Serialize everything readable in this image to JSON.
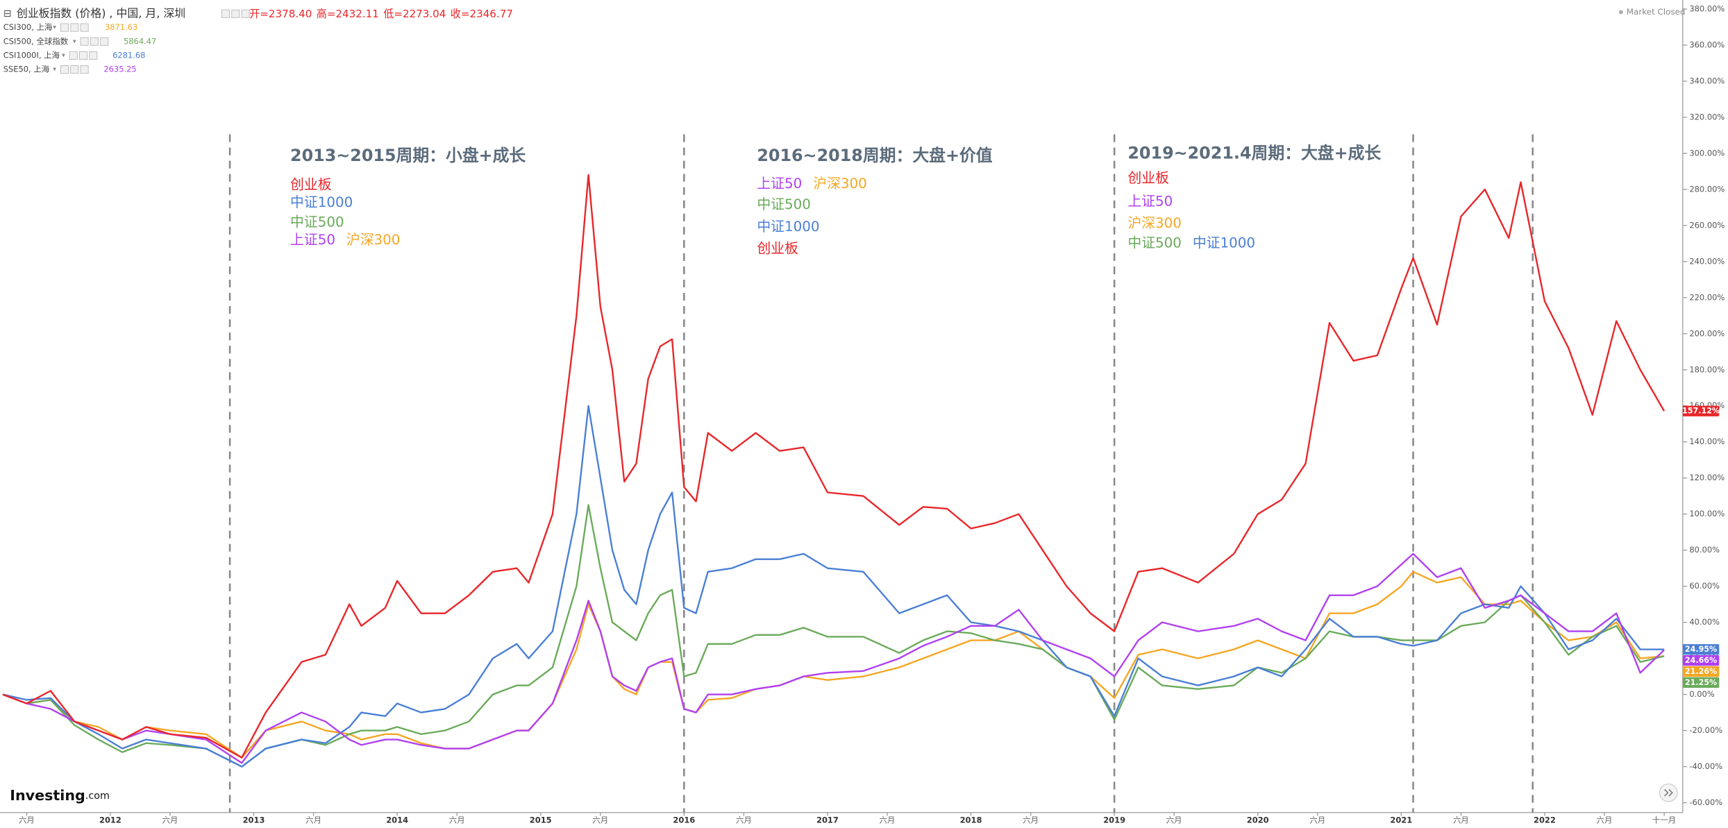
{
  "chart_data": {
    "type": "line",
    "ui": {
      "status": "Market Closed",
      "logo": "Investing",
      "logo_suffix": ".com"
    },
    "ohlc": [
      "开=2378.40",
      "高=2432.11",
      "低=2273.04",
      "收=2346.77"
    ],
    "x": [
      "2011-04",
      "2011-06",
      "2011-08",
      "2011-10",
      "2011-12",
      "2012-02",
      "2012-04",
      "2012-06",
      "2012-09",
      "2012-12",
      "2013-02",
      "2013-05",
      "2013-07",
      "2013-09",
      "2013-10",
      "2013-12",
      "2014-01",
      "2014-03",
      "2014-05",
      "2014-07",
      "2014-09",
      "2014-11",
      "2014-12",
      "2015-02",
      "2015-04",
      "2015-05",
      "2015-06",
      "2015-07",
      "2015-08",
      "2015-09",
      "2015-10",
      "2015-11",
      "2015-12",
      "2016-01",
      "2016-02",
      "2016-03",
      "2016-05",
      "2016-07",
      "2016-09",
      "2016-11",
      "2017-01",
      "2017-04",
      "2017-07",
      "2017-09",
      "2017-11",
      "2018-01",
      "2018-03",
      "2018-05",
      "2018-07",
      "2018-09",
      "2018-11",
      "2019-01",
      "2019-03",
      "2019-05",
      "2019-08",
      "2019-11",
      "2020-01",
      "2020-03",
      "2020-05",
      "2020-07",
      "2020-09",
      "2020-11",
      "2021-01",
      "2021-02",
      "2021-04",
      "2021-06",
      "2021-08",
      "2021-10",
      "2021-11",
      "2022-01",
      "2022-03",
      "2022-05",
      "2022-07",
      "2022-09",
      "2022-11"
    ],
    "series": [
      {
        "name": "CSI300, 上海",
        "legend_value": 3871.63,
        "end_label": "21.26%",
        "color": "#f5a623",
        "values": [
          0,
          -5,
          -3,
          -15,
          -18,
          -25,
          -18,
          -20,
          -22,
          -35,
          -20,
          -15,
          -20,
          -22,
          -25,
          -22,
          -22,
          -27,
          -30,
          -30,
          -25,
          -20,
          -20,
          -5,
          25,
          50,
          35,
          10,
          3,
          0,
          15,
          18,
          18,
          -8,
          -10,
          -3,
          -2,
          3,
          5,
          10,
          8,
          10,
          15,
          20,
          25,
          30,
          30,
          35,
          25,
          15,
          10,
          -2,
          22,
          25,
          20,
          25,
          30,
          25,
          20,
          45,
          45,
          50,
          60,
          68,
          62,
          65,
          50,
          50,
          52,
          40,
          30,
          32,
          40,
          20,
          21.26
        ]
      },
      {
        "name": "CSI500, 全球指数",
        "legend_value": 5864.47,
        "end_label": "21.25%",
        "color": "#6aaa5a",
        "values": [
          0,
          -5,
          -3,
          -17,
          -25,
          -32,
          -27,
          -28,
          -30,
          -40,
          -30,
          -25,
          -28,
          -22,
          -20,
          -20,
          -18,
          -22,
          -20,
          -15,
          0,
          5,
          5,
          15,
          60,
          105,
          70,
          40,
          35,
          30,
          45,
          55,
          58,
          10,
          12,
          28,
          28,
          33,
          33,
          37,
          32,
          32,
          23,
          30,
          35,
          34,
          30,
          28,
          25,
          15,
          10,
          -14,
          15,
          5,
          3,
          5,
          15,
          12,
          20,
          35,
          32,
          32,
          30,
          30,
          30,
          38,
          40,
          52,
          55,
          40,
          22,
          32,
          38,
          18,
          21.25
        ]
      },
      {
        "name": "CSI1000I, 上海",
        "legend_value": 6281.68,
        "end_label": "24.95%",
        "color": "#4a7fd4",
        "values": [
          0,
          -3,
          -2,
          -15,
          -22,
          -30,
          -25,
          -27,
          -30,
          -40,
          -30,
          -25,
          -27,
          -18,
          -10,
          -12,
          -5,
          -10,
          -8,
          0,
          20,
          28,
          20,
          35,
          100,
          160,
          120,
          80,
          58,
          50,
          80,
          100,
          112,
          48,
          45,
          68,
          70,
          75,
          75,
          78,
          70,
          68,
          45,
          50,
          55,
          40,
          38,
          35,
          30,
          15,
          10,
          -12,
          20,
          10,
          5,
          10,
          15,
          10,
          25,
          42,
          32,
          32,
          28,
          27,
          30,
          45,
          50,
          48,
          60,
          45,
          25,
          30,
          42,
          25,
          24.95
        ]
      },
      {
        "name": "SSE50, 上海",
        "legend_value": 2635.25,
        "end_label": "24.66%",
        "color": "#b040f0",
        "values": [
          0,
          -5,
          -8,
          -15,
          -20,
          -25,
          -20,
          -22,
          -25,
          -38,
          -20,
          -10,
          -15,
          -25,
          -28,
          -25,
          -25,
          -28,
          -30,
          -30,
          -25,
          -20,
          -20,
          -5,
          30,
          52,
          35,
          10,
          5,
          2,
          15,
          18,
          20,
          -8,
          -10,
          0,
          0,
          3,
          5,
          10,
          12,
          13,
          20,
          27,
          32,
          38,
          38,
          47,
          30,
          25,
          20,
          10,
          30,
          40,
          35,
          38,
          42,
          35,
          30,
          55,
          55,
          60,
          72,
          78,
          65,
          70,
          48,
          52,
          55,
          45,
          35,
          35,
          45,
          12,
          24.66
        ]
      },
      {
        "name": "创业板指数 (价格) , 中国, 月, 深圳",
        "end_label": "157.12%",
        "color": "#e8262a",
        "values": [
          0,
          -5,
          2,
          -15,
          -20,
          -25,
          -18,
          -22,
          -24,
          -35,
          -10,
          18,
          22,
          50,
          38,
          48,
          63,
          45,
          45,
          55,
          68,
          70,
          62,
          100,
          210,
          288,
          215,
          180,
          118,
          128,
          175,
          193,
          197,
          115,
          107,
          145,
          135,
          145,
          135,
          137,
          112,
          110,
          94,
          104,
          103,
          92,
          95,
          100,
          80,
          60,
          45,
          35,
          68,
          70,
          62,
          78,
          100,
          108,
          128,
          206,
          185,
          188,
          225,
          242,
          205,
          265,
          280,
          253,
          284,
          218,
          192,
          155,
          207,
          180,
          157.12
        ]
      }
    ],
    "xlim": [
      "2011-04",
      "2022-12"
    ],
    "xticks": [
      {
        "value": "2011-06",
        "label": "六月"
      },
      {
        "value": "2012-01",
        "label": "2012"
      },
      {
        "value": "2012-06",
        "label": "六月"
      },
      {
        "value": "2013-01",
        "label": "2013"
      },
      {
        "value": "2013-06",
        "label": "六月"
      },
      {
        "value": "2014-01",
        "label": "2014"
      },
      {
        "value": "2014-06",
        "label": "六月"
      },
      {
        "value": "2015-01",
        "label": "2015"
      },
      {
        "value": "2015-06",
        "label": "六月"
      },
      {
        "value": "2016-01",
        "label": "2016"
      },
      {
        "value": "2016-06",
        "label": "六月"
      },
      {
        "value": "2017-01",
        "label": "2017"
      },
      {
        "value": "2017-06",
        "label": "六月"
      },
      {
        "value": "2018-01",
        "label": "2018"
      },
      {
        "value": "2018-06",
        "label": "六月"
      },
      {
        "value": "2019-01",
        "label": "2019"
      },
      {
        "value": "2019-06",
        "label": "六月"
      },
      {
        "value": "2020-01",
        "label": "2020"
      },
      {
        "value": "2020-06",
        "label": "六月"
      },
      {
        "value": "2021-01",
        "label": "2021"
      },
      {
        "value": "2021-06",
        "label": "六月"
      },
      {
        "value": "2022-01",
        "label": "2022"
      },
      {
        "value": "2022-06",
        "label": "六月"
      },
      {
        "value": "2022-11",
        "label": "十一月"
      }
    ],
    "ylim": [
      -60,
      385
    ],
    "yticks": [
      {
        "value": -60,
        "label": "-60.00%"
      },
      {
        "value": -40,
        "label": "-40.00%"
      },
      {
        "value": -20,
        "label": "-20.00%"
      },
      {
        "value": 0,
        "label": "0.00%"
      },
      {
        "value": 20,
        "label": "20.00%"
      },
      {
        "value": 40,
        "label": "40.00%"
      },
      {
        "value": 60,
        "label": "60.00%"
      },
      {
        "value": 80,
        "label": "80.00%"
      },
      {
        "value": 100,
        "label": "100.00%"
      },
      {
        "value": 120,
        "label": "120.00%"
      },
      {
        "value": 140,
        "label": "140.00%"
      },
      {
        "value": 160,
        "label": "160.00%"
      },
      {
        "value": 180,
        "label": "180.00%"
      },
      {
        "value": 200,
        "label": "200.00%"
      },
      {
        "value": 220,
        "label": "220.00%"
      },
      {
        "value": 240,
        "label": "240.00%"
      },
      {
        "value": 260,
        "label": "260.00%"
      },
      {
        "value": 280,
        "label": "280.00%"
      },
      {
        "value": 300,
        "label": "300.00%"
      },
      {
        "value": 320,
        "label": "320.00%"
      },
      {
        "value": 340,
        "label": "340.00%"
      },
      {
        "value": 360,
        "label": "360.00%"
      },
      {
        "value": 380,
        "label": "380.00%"
      }
    ],
    "grid": false,
    "vlines": [
      "2012-11",
      "2016-01",
      "2019-01",
      "2021-02",
      "2021-12"
    ],
    "annotations": [
      {
        "title": "2013~2015周期：小盘+成长",
        "lines": [
          [
            {
              "text": "创业板",
              "color": "#e8262a"
            }
          ],
          [
            {
              "text": "中证1000",
              "color": "#4a7fd4"
            }
          ],
          [
            {
              "text": "中证500",
              "color": "#6aaa5a"
            }
          ],
          [
            {
              "text": "上证50",
              "color": "#b040f0"
            },
            {
              "text": "沪深300",
              "color": "#f5a623"
            }
          ]
        ]
      },
      {
        "title": "2016~2018周期：大盘+价值",
        "lines": [
          [
            {
              "text": "上证50",
              "color": "#b040f0"
            },
            {
              "text": "沪深300",
              "color": "#f5a623"
            }
          ],
          [
            {
              "text": "中证500",
              "color": "#6aaa5a"
            }
          ],
          [
            {
              "text": "中证1000",
              "color": "#4a7fd4"
            }
          ],
          [
            {
              "text": "创业板",
              "color": "#e8262a"
            }
          ]
        ]
      },
      {
        "title": "2019~2021.4周期：大盘+成长",
        "lines": [
          [
            {
              "text": "创业板",
              "color": "#e8262a"
            }
          ],
          [
            {
              "text": "上证50",
              "color": "#b040f0"
            }
          ],
          [
            {
              "text": "沪深300",
              "color": "#f5a623"
            }
          ],
          [
            {
              "text": "中证500",
              "color": "#6aaa5a"
            },
            {
              "text": "中证1000",
              "color": "#4a7fd4"
            }
          ]
        ]
      }
    ]
  }
}
